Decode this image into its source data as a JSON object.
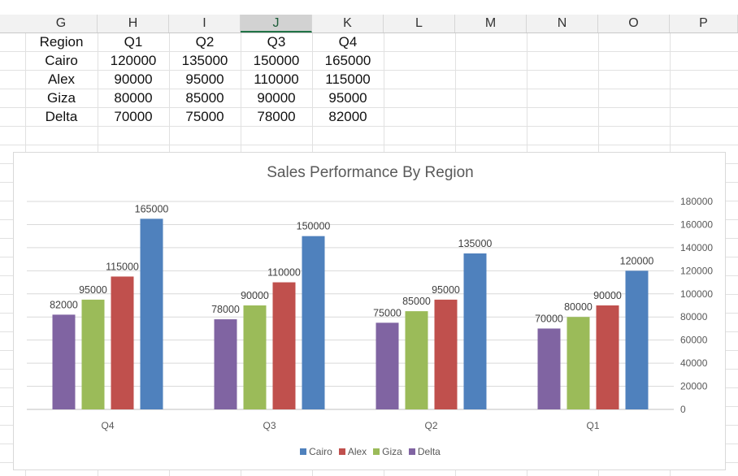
{
  "columns": [
    "G",
    "H",
    "I",
    "J",
    "K",
    "L",
    "M",
    "N",
    "O",
    "P"
  ],
  "active_column": "J",
  "table": {
    "headers": [
      "Region",
      "Q1",
      "Q2",
      "Q3",
      "Q4"
    ],
    "rows": [
      [
        "Cairo",
        "120000",
        "135000",
        "150000",
        "165000"
      ],
      [
        "Alex",
        "90000",
        "95000",
        "110000",
        "115000"
      ],
      [
        "Giza",
        "80000",
        "85000",
        "90000",
        "95000"
      ],
      [
        "Delta",
        "70000",
        "75000",
        "78000",
        "82000"
      ]
    ]
  },
  "chart_data": {
    "type": "bar",
    "title": "Sales Performance By Region",
    "categories": [
      "Q4",
      "Q3",
      "Q2",
      "Q1"
    ],
    "series": [
      {
        "name": "Delta",
        "color": "#8064a2",
        "values": [
          82000,
          78000,
          75000,
          70000
        ]
      },
      {
        "name": "Giza",
        "color": "#9bbb59",
        "values": [
          95000,
          90000,
          85000,
          80000
        ]
      },
      {
        "name": "Alex",
        "color": "#c0504d",
        "values": [
          115000,
          110000,
          95000,
          90000
        ]
      },
      {
        "name": "Cairo",
        "color": "#4f81bd",
        "values": [
          165000,
          150000,
          135000,
          120000
        ]
      }
    ],
    "legend_order": [
      "Cairo",
      "Alex",
      "Giza",
      "Delta"
    ],
    "ylim": [
      0,
      180000
    ],
    "yticks": [
      "0",
      "20000",
      "40000",
      "60000",
      "80000",
      "100000",
      "120000",
      "140000",
      "160000",
      "180000"
    ],
    "y_axis_position": "right",
    "grid": true,
    "legend_position": "bottom"
  }
}
